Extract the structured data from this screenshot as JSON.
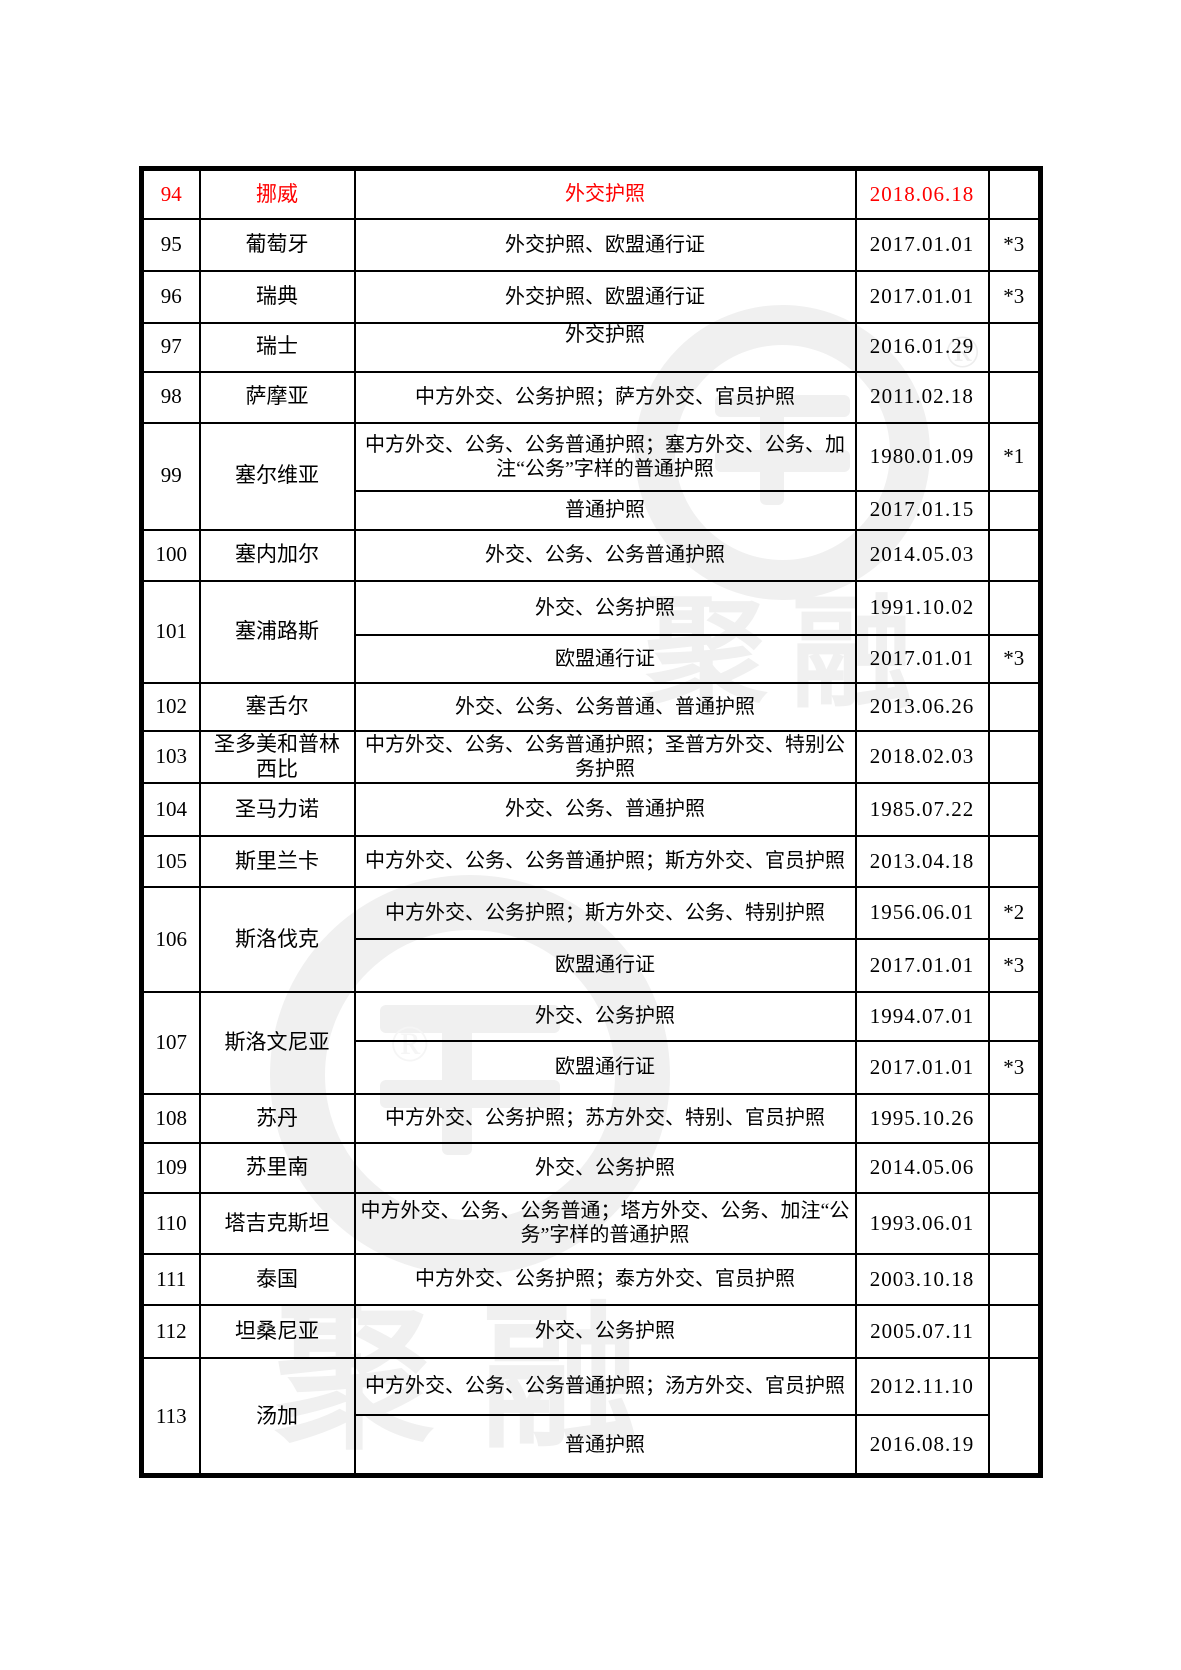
{
  "watermark": {
    "brand_chars": "聚融",
    "registered_mark": "®"
  },
  "table": {
    "groups": [
      {
        "no": "94",
        "country": "挪威",
        "highlight": true,
        "rows": [
          {
            "passports": "外交护照",
            "date": "2018.06.18",
            "note": ""
          }
        ]
      },
      {
        "no": "95",
        "country": "葡萄牙",
        "rows": [
          {
            "passports": "外交护照、欧盟通行证",
            "date": "2017.01.01",
            "note": "*3"
          }
        ]
      },
      {
        "no": "96",
        "country": "瑞典",
        "rows": [
          {
            "passports": "外交护照、欧盟通行证",
            "date": "2017.01.01",
            "note": "*3"
          }
        ]
      },
      {
        "no": "97",
        "country": "瑞士",
        "rows": [
          {
            "passports": "外交护照",
            "date": "2016.01.29",
            "note": ""
          }
        ]
      },
      {
        "no": "98",
        "country": "萨摩亚",
        "rows": [
          {
            "passports": "中方外交、公务护照；萨方外交、官员护照",
            "date": "2011.02.18",
            "note": ""
          }
        ]
      },
      {
        "no": "99",
        "country": "塞尔维亚",
        "rows": [
          {
            "passports": "中方外交、公务、公务普通护照；塞方外交、公务、加注“公务”字样的普通护照",
            "date": "1980.01.09",
            "note": "*1"
          },
          {
            "passports": "普通护照",
            "date": "2017.01.15",
            "note": ""
          }
        ]
      },
      {
        "no": "100",
        "country": "塞内加尔",
        "rows": [
          {
            "passports": "外交、公务、公务普通护照",
            "date": "2014.05.03",
            "note": ""
          }
        ]
      },
      {
        "no": "101",
        "country": "塞浦路斯",
        "rows": [
          {
            "passports": "外交、公务护照",
            "date": "1991.10.02",
            "note": ""
          },
          {
            "passports": "欧盟通行证",
            "date": "2017.01.01",
            "note": "*3"
          }
        ]
      },
      {
        "no": "102",
        "country": "塞舌尔",
        "rows": [
          {
            "passports": "外交、公务、公务普通、普通护照",
            "date": "2013.06.26",
            "note": ""
          }
        ]
      },
      {
        "no": "103",
        "country": "圣多美和普林西比",
        "rows": [
          {
            "passports": "中方外交、公务、公务普通护照；圣普方外交、特别公务护照",
            "date": "2018.02.03",
            "note": ""
          }
        ]
      },
      {
        "no": "104",
        "country": "圣马力诺",
        "rows": [
          {
            "passports": "外交、公务、普通护照",
            "date": "1985.07.22",
            "note": ""
          }
        ]
      },
      {
        "no": "105",
        "country": "斯里兰卡",
        "rows": [
          {
            "passports": "中方外交、公务、公务普通护照；斯方外交、官员护照",
            "date": "2013.04.18",
            "note": ""
          }
        ]
      },
      {
        "no": "106",
        "country": "斯洛伐克",
        "rows": [
          {
            "passports": "中方外交、公务护照；斯方外交、公务、特别护照",
            "date": "1956.06.01",
            "note": "*2"
          },
          {
            "passports": "欧盟通行证",
            "date": "2017.01.01",
            "note": "*3"
          }
        ]
      },
      {
        "no": "107",
        "country": "斯洛文尼亚",
        "rows": [
          {
            "passports": "外交、公务护照",
            "date": "1994.07.01",
            "note": ""
          },
          {
            "passports": "欧盟通行证",
            "date": "2017.01.01",
            "note": "*3"
          }
        ]
      },
      {
        "no": "108",
        "country": "苏丹",
        "rows": [
          {
            "passports": "中方外交、公务护照；苏方外交、特别、官员护照",
            "date": "1995.10.26",
            "note": ""
          }
        ]
      },
      {
        "no": "109",
        "country": "苏里南",
        "rows": [
          {
            "passports": "外交、公务护照",
            "date": "2014.05.06",
            "note": ""
          }
        ]
      },
      {
        "no": "110",
        "country": "塔吉克斯坦",
        "rows": [
          {
            "passports": "中方外交、公务、公务普通；塔方外交、公务、加注“公务”字样的普通护照",
            "date": "1993.06.01",
            "note": ""
          }
        ]
      },
      {
        "no": "111",
        "country": "泰国",
        "rows": [
          {
            "passports": "中方外交、公务护照；泰方外交、官员护照",
            "date": "2003.10.18",
            "note": ""
          }
        ]
      },
      {
        "no": "112",
        "country": "坦桑尼亚",
        "rows": [
          {
            "passports": "外交、公务护照",
            "date": "2005.07.11",
            "note": ""
          }
        ]
      },
      {
        "no": "113",
        "country": "汤加",
        "rows": [
          {
            "passports": "中方外交、公务、公务普通护照；汤方外交、官员护照",
            "date": "2012.11.10",
            "note": ""
          },
          {
            "passports": "普通护照",
            "date": "2016.08.19",
            "note": ""
          }
        ]
      }
    ]
  }
}
